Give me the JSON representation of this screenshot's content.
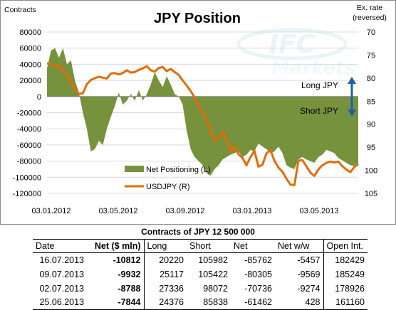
{
  "chart_data": {
    "type": "area+line",
    "title": "JPY Position",
    "left_axis_title": "Contracts",
    "right_axis_title": [
      "Ex. rate",
      "(reversed)"
    ],
    "left_ylim": [
      -120000,
      80000
    ],
    "left_ticks": [
      "80000",
      "60000",
      "40000",
      "20000",
      "0",
      "-20000",
      "-40000",
      "-60000",
      "-80000",
      "-100000",
      "-120000"
    ],
    "right_ylim": [
      70,
      105
    ],
    "right_reversed": true,
    "right_ticks": [
      "70",
      "75",
      "80",
      "85",
      "90",
      "95",
      "100",
      "105"
    ],
    "x_tick_labels": [
      "03.01.2012",
      "03.05.2012",
      "03.09.2012",
      "03.01.2013",
      "03.05.2013"
    ],
    "legend_position": "bottom-center",
    "annotations": {
      "long": "Long JPY",
      "short": "Short JPY"
    },
    "watermark": {
      "logo": "IFC",
      "sub": "Markets"
    },
    "colors": {
      "area": "#76923c",
      "line": "#e46c0a",
      "arrow": "#1f5fa8",
      "grid": "#d9d9d9"
    },
    "series": [
      {
        "name": "Net Positioning (L)",
        "kind": "area",
        "x": [
          0,
          1,
          2,
          3,
          4,
          5,
          6,
          7,
          8,
          9,
          10,
          11,
          12,
          13,
          14,
          15,
          16,
          17,
          18,
          19,
          20,
          21,
          22,
          23,
          24,
          25,
          26,
          27,
          28,
          29,
          30,
          31,
          32,
          33,
          34,
          35,
          36,
          37,
          38,
          39,
          40,
          41,
          42,
          43,
          44,
          45,
          46,
          47,
          48,
          49,
          50,
          51,
          52,
          53,
          54,
          55,
          56,
          57,
          58,
          59,
          60,
          61,
          62,
          63,
          64,
          65,
          66,
          67,
          68,
          69,
          70,
          71,
          72,
          73,
          74,
          75,
          76,
          77,
          78
        ],
        "values": [
          35000,
          57000,
          60000,
          48000,
          60000,
          40000,
          45000,
          20000,
          5000,
          -20000,
          -40000,
          -68000,
          -65000,
          -55000,
          -60000,
          -40000,
          -25000,
          -12000,
          5000,
          -10000,
          -5000,
          3000,
          -5000,
          8000,
          -5000,
          3000,
          15000,
          30000,
          20000,
          12000,
          25000,
          15000,
          3000,
          0,
          -10000,
          -42000,
          -65000,
          -75000,
          -80000,
          -85000,
          -95000,
          -98000,
          -90000,
          -85000,
          -78000,
          -75000,
          -72000,
          -70000,
          -68000,
          -75000,
          -72000,
          -66000,
          -68000,
          -58000,
          -62000,
          -65000,
          -70000,
          -68000,
          -62000,
          -70000,
          -85000,
          -88000,
          -90000,
          -78000,
          -75000,
          -78000,
          -80000,
          -82000,
          -75000,
          -72000,
          -66000,
          -68000,
          -70000,
          -76000,
          -79000,
          -82000,
          -85000,
          -86000,
          -86000
        ]
      },
      {
        "name": "USDJPY (R)",
        "kind": "line",
        "axis": "right",
        "x": [
          0,
          1,
          2,
          3,
          4,
          5,
          6,
          7,
          8,
          9,
          10,
          11,
          12,
          13,
          14,
          15,
          16,
          17,
          18,
          19,
          20,
          21,
          22,
          23,
          24,
          25,
          26,
          27,
          28,
          29,
          30,
          31,
          32,
          33,
          34,
          35,
          36,
          37,
          38,
          39,
          40,
          41,
          42,
          43,
          44,
          45,
          46,
          47,
          48,
          49,
          50,
          51,
          52,
          53,
          54,
          55,
          56,
          57,
          58,
          59,
          60,
          61,
          62,
          63,
          64,
          65,
          66,
          67,
          68,
          69,
          70,
          71,
          72,
          73,
          74,
          75,
          76,
          77,
          78
        ],
        "values": [
          76.8,
          76.9,
          77.5,
          77.1,
          78.4,
          79.3,
          80.9,
          82.5,
          83.4,
          83.3,
          81.3,
          80.4,
          80.0,
          79.7,
          79.9,
          80.1,
          79.0,
          78.9,
          79.2,
          78.9,
          78.3,
          78.8,
          78.7,
          78.2,
          77.9,
          77.4,
          78.3,
          78.6,
          77.8,
          77.6,
          78.5,
          78.0,
          78.7,
          79.3,
          80.5,
          81.6,
          82.8,
          84.2,
          86.0,
          87.3,
          89.0,
          91.6,
          93.5,
          93.3,
          91.6,
          93.2,
          96.0,
          94.8,
          96.5,
          97.3,
          98.9,
          97.1,
          95.8,
          99.2,
          98.8,
          96.3,
          95.6,
          97.9,
          99.4,
          100.3,
          101.8,
          103.1,
          103.2,
          97.9,
          97.8,
          99.1,
          100.5,
          101.2,
          99.8,
          98.9,
          98.4,
          98.1,
          98.3,
          98.1,
          99.1,
          99.8,
          100.4,
          99.3,
          98.6
        ]
      }
    ]
  },
  "table": {
    "title": "Contracts of JPY 12 500 000",
    "headers": [
      "Date",
      "Net ($ mln)",
      "Long",
      "Short",
      "Net",
      "Net w/w",
      "Open Int."
    ],
    "rows": [
      [
        "16.07.2013",
        "-10812",
        "20220",
        "105982",
        "-85762",
        "-5457",
        "182429"
      ],
      [
        "09.07.2013",
        "-9932",
        "25117",
        "105422",
        "-80305",
        "-9569",
        "185249"
      ],
      [
        "02.07.2013",
        "-8788",
        "27336",
        "98072",
        "-70736",
        "-9274",
        "178926"
      ],
      [
        "25.06.2013",
        "-7844",
        "24376",
        "85838",
        "-61462",
        "428",
        "161160"
      ]
    ]
  }
}
